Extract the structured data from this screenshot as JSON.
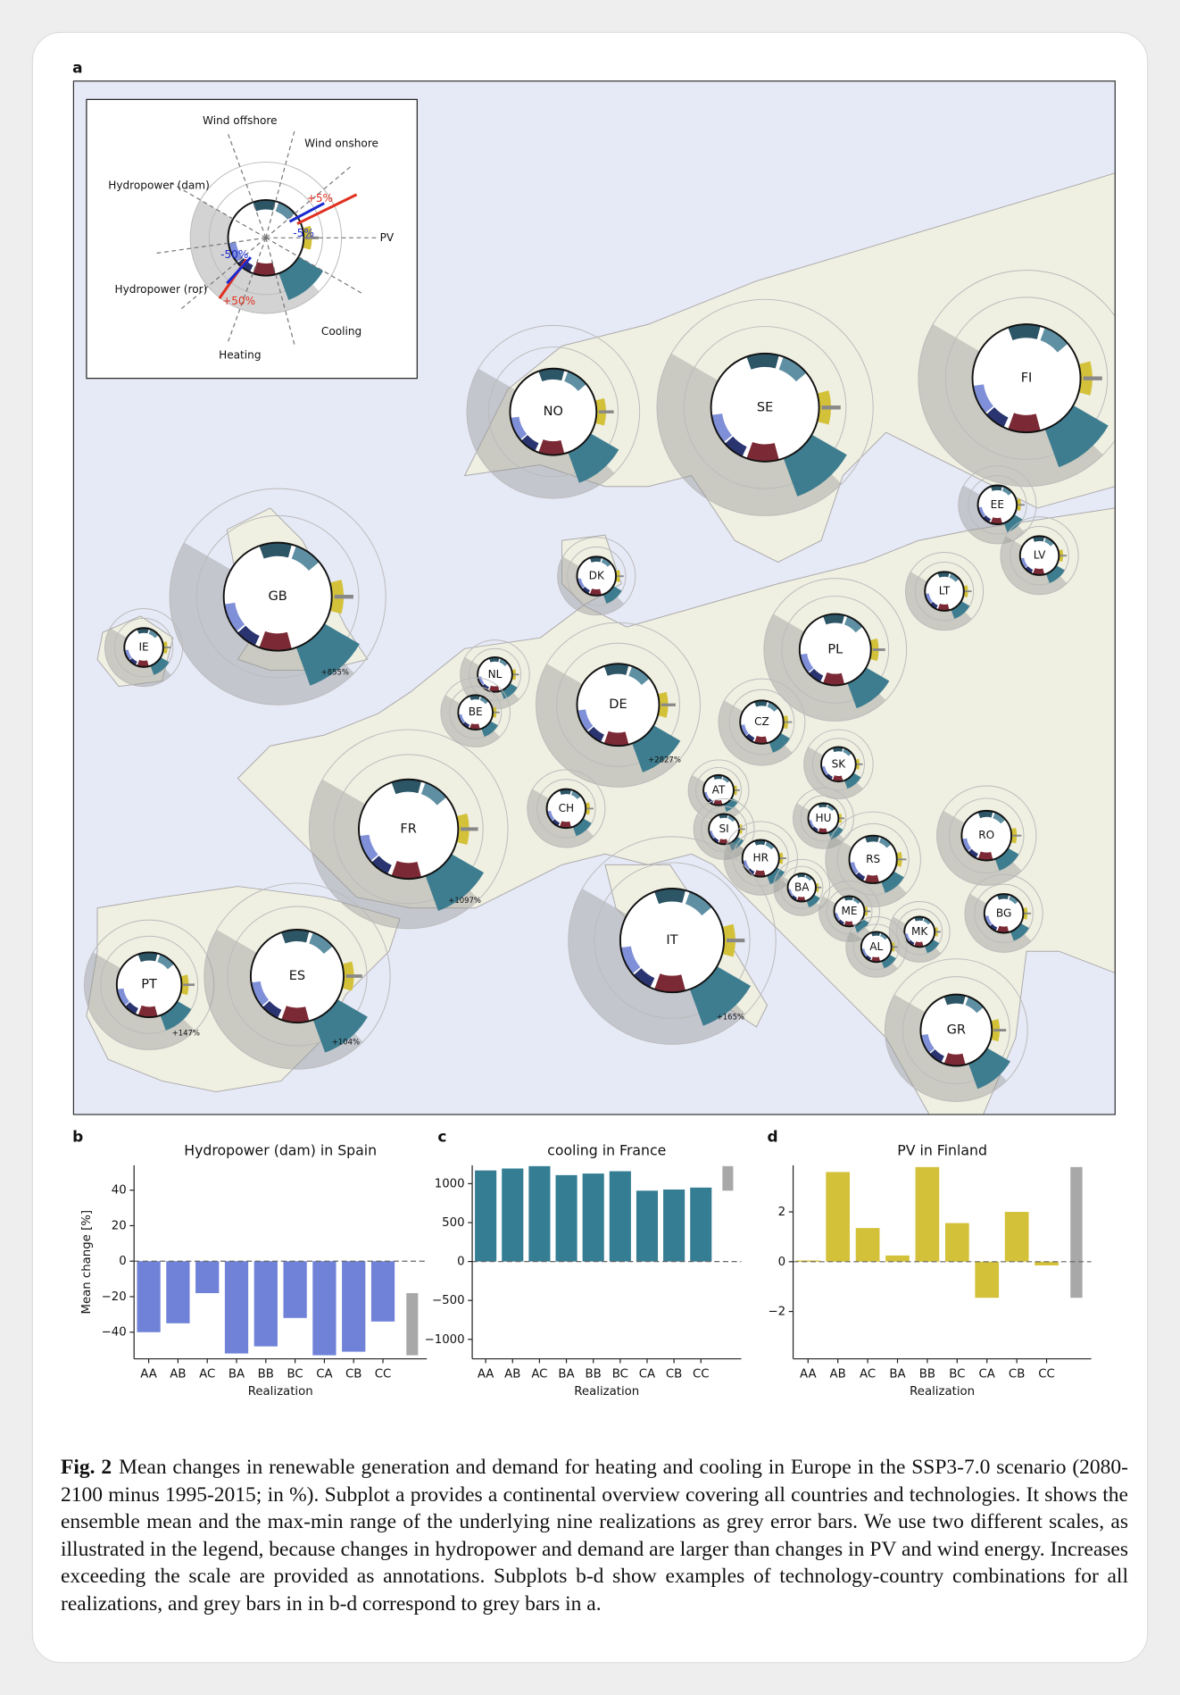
{
  "panel_labels": [
    "a",
    "b",
    "c",
    "d"
  ],
  "map": {
    "legend": {
      "labels": [
        "Wind offshore",
        "Wind onshore",
        "Hydropower (dam)",
        "PV",
        "Hydropower (ror)",
        "Cooling",
        "Heating"
      ],
      "annotations": [
        "+5%",
        "-5%",
        "-50%",
        "+50%"
      ]
    },
    "countries": [
      "NO",
      "SE",
      "FI",
      "EE",
      "LV",
      "LT",
      "DK",
      "GB",
      "IE",
      "NL",
      "BE",
      "DE",
      "PL",
      "CZ",
      "SK",
      "AT",
      "CH",
      "FR",
      "SI",
      "HU",
      "RO",
      "HR",
      "RS",
      "BA",
      "ME",
      "BG",
      "MK",
      "AL",
      "IT",
      "PT",
      "ES",
      "GR"
    ],
    "annotations": [
      "+855%",
      "+2827%",
      "+1097%",
      "+165%",
      "+104%",
      "+147%"
    ]
  },
  "chart_data": [
    {
      "type": "bar",
      "title": "Hydropower (dam) in Spain",
      "ylabel": "Mean change [%]",
      "xlabel": "Realization",
      "categories": [
        "AA",
        "AB",
        "AC",
        "BA",
        "BB",
        "BC",
        "CA",
        "CB",
        "CC"
      ],
      "values": [
        -40,
        -35,
        -18,
        -52,
        -48,
        -32,
        -53,
        -51,
        -34
      ],
      "color": "#6f82d8",
      "range": [
        -53,
        -18
      ],
      "range_color": "#a8a8a8",
      "ylim": [
        -55,
        54
      ],
      "yticks": [
        {
          "value": -40,
          "label": "−40"
        },
        {
          "value": -20,
          "label": "−20"
        },
        0,
        20,
        40
      ],
      "zero_line": true
    },
    {
      "type": "bar",
      "title": "cooling in France",
      "xlabel": "Realization",
      "categories": [
        "AA",
        "AB",
        "AC",
        "BA",
        "BB",
        "BC",
        "CA",
        "CB",
        "CC"
      ],
      "values": [
        1170,
        1195,
        1225,
        1110,
        1130,
        1160,
        910,
        925,
        950
      ],
      "color": "#347d93",
      "range": [
        910,
        1225
      ],
      "range_color": "#a8a8a8",
      "ylim": [
        -1250,
        1236
      ],
      "yticks": [
        {
          "value": -1000,
          "label": "−1000"
        },
        {
          "value": -500,
          "label": "−500"
        },
        0,
        500,
        1000
      ],
      "zero_line": true
    },
    {
      "type": "bar",
      "title": "PV in Finland",
      "xlabel": "Realization",
      "categories": [
        "AA",
        "AB",
        "AC",
        "BA",
        "BB",
        "BC",
        "CA",
        "CB",
        "CC"
      ],
      "values": [
        0.05,
        3.6,
        1.35,
        0.25,
        3.8,
        1.55,
        -1.45,
        2.0,
        -0.15
      ],
      "color": "#d4c13a",
      "range": [
        -1.45,
        3.8
      ],
      "range_color": "#a8a8a8",
      "ylim": [
        -3.9,
        3.87
      ],
      "yticks": [
        {
          "value": -2,
          "label": "−2"
        },
        0,
        2
      ],
      "zero_line": true
    }
  ],
  "caption": {
    "label": "Fig. 2",
    "text": "Mean changes in renewable generation and demand for heating and cooling in Europe in the SSP3-7.0 scenario (2080-2100 minus 1995-2015; in %). Subplot a provides a continental overview covering all countries and technologies. It shows the ensemble mean and the max-min range of the underlying nine realizations as grey error bars. We use two different scales, as illustrated in the legend, because changes in hydropower and demand are larger than changes in PV and wind energy. Increases exceeding the scale are provided as annotations. Subplots b-d show examples of technology-country combinations for all realizations, and grey bars in in b-d correspond to grey bars in a."
  }
}
